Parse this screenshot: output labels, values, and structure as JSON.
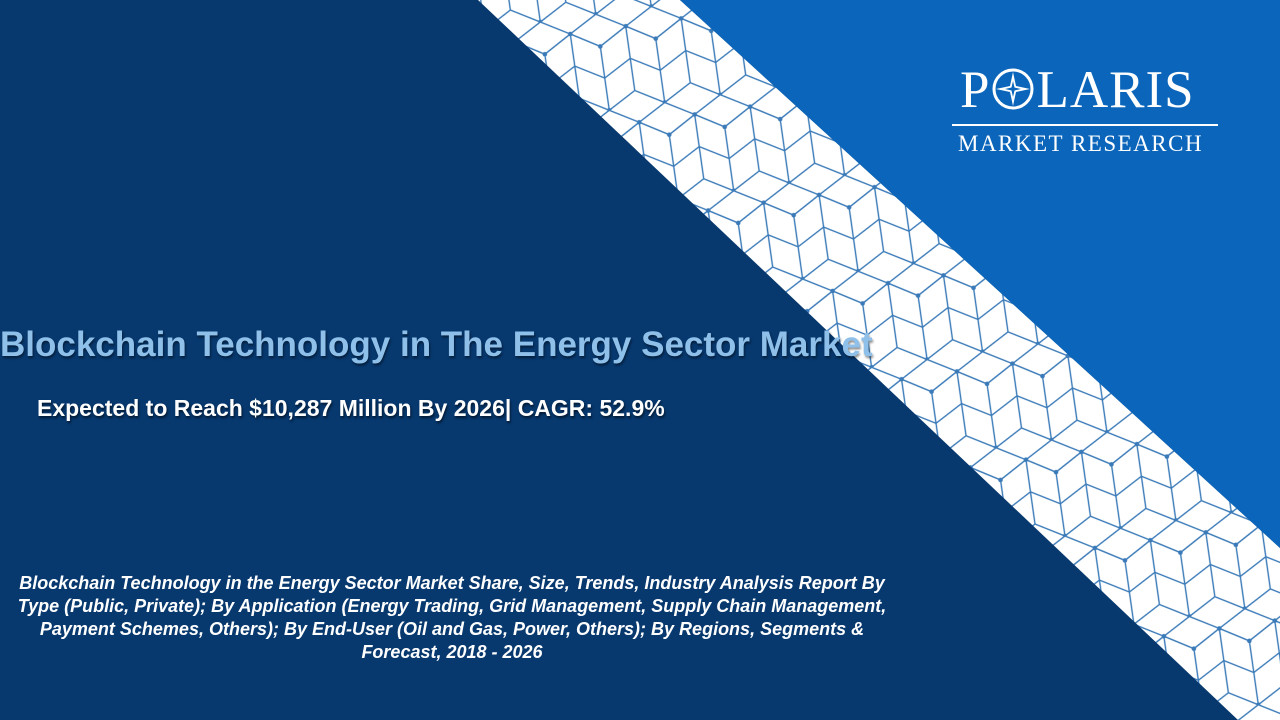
{
  "brand": {
    "name_prefix": "P",
    "name_suffix": "LARIS",
    "tagline": "MARKET RESEARCH",
    "logo_icon": "compass-star-icon"
  },
  "slide": {
    "title": "Blockchain Technology in The Energy Sector Market",
    "subtitle": "Expected to Reach $10,287 Million By 2026| CAGR: 52.9%",
    "description": "Blockchain Technology in the Energy Sector Market Share, Size, Trends, Industry Analysis Report By Type (Public, Private); By Application (Energy Trading, Grid Management, Supply Chain Management, Payment Schemes, Others); By End-User (Oil and Gas, Power, Others); By Regions, Segments & Forecast, 2018 - 2026"
  },
  "colors": {
    "navy_background": "#07386e",
    "blue_panel": "#0b66bb",
    "pattern_band": "#ffffff",
    "pattern_line": "#3a7ab8",
    "title_color": "#8fc0ea",
    "text_color": "#ffffff"
  }
}
